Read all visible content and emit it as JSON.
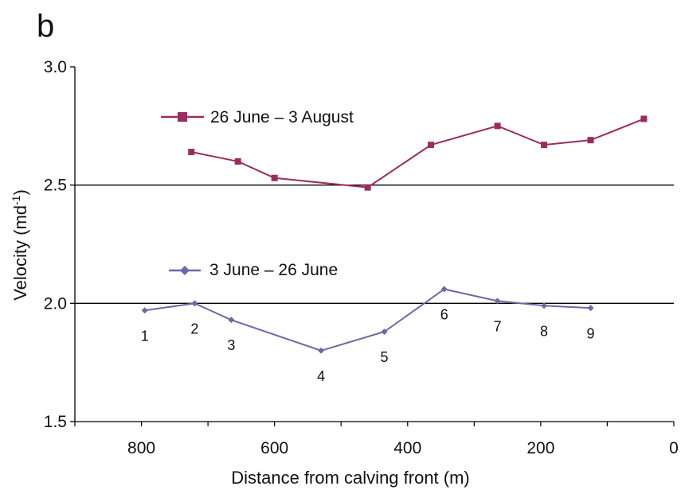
{
  "panel_label": "b",
  "chart_data": {
    "type": "line",
    "xlabel": "Distance from calving front (m)",
    "ylabel": "Velocity  (md -1)",
    "ylabel_main": "Velocity  (md",
    "ylabel_sup": "-1",
    "ylabel_close": ")",
    "xlim": [
      900,
      0
    ],
    "ylim": [
      1.5,
      3.0
    ],
    "x_ticks": [
      800,
      600,
      400,
      200,
      0
    ],
    "x_tick_labels": [
      "800",
      "600",
      "400",
      "200",
      "0"
    ],
    "y_ticks": [
      1.5,
      2.0,
      2.5,
      3.0
    ],
    "y_tick_labels": [
      "1.5",
      "2.0",
      "2.5",
      "3.0"
    ],
    "grid_lines_y": [
      2.0,
      2.5
    ],
    "legend_placement": "inline",
    "series": [
      {
        "name": "26 June – 3 August",
        "color": "#9b2c5e",
        "marker": "square",
        "x": [
          725,
          655,
          600,
          460,
          365,
          265,
          195,
          125,
          45
        ],
        "y": [
          2.64,
          2.6,
          2.53,
          2.49,
          2.67,
          2.75,
          2.67,
          2.69,
          2.78
        ]
      },
      {
        "name": "3 June – 26 June",
        "color": "#6a6aa6",
        "marker": "diamond",
        "x": [
          795,
          720,
          665,
          530,
          435,
          345,
          265,
          195,
          125
        ],
        "y": [
          1.97,
          2.0,
          1.93,
          1.8,
          1.88,
          2.06,
          2.01,
          1.99,
          1.98
        ]
      }
    ],
    "annotations": [
      {
        "text": "1",
        "x": 795,
        "y": 1.97
      },
      {
        "text": "2",
        "x": 720,
        "y": 2.0
      },
      {
        "text": "3",
        "x": 665,
        "y": 1.93
      },
      {
        "text": "4",
        "x": 530,
        "y": 1.8
      },
      {
        "text": "5",
        "x": 435,
        "y": 1.88
      },
      {
        "text": "6",
        "x": 345,
        "y": 2.06
      },
      {
        "text": "7",
        "x": 265,
        "y": 2.01
      },
      {
        "text": "8",
        "x": 195,
        "y": 1.99
      },
      {
        "text": "9",
        "x": 125,
        "y": 1.98
      }
    ]
  }
}
